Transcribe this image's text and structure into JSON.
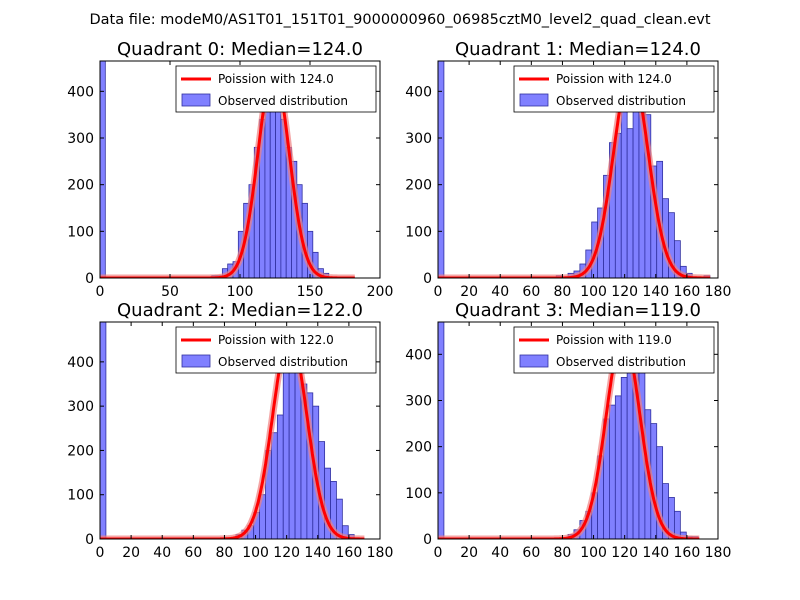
{
  "figure": {
    "suptitle": "Data file: modeM0/AS1T01_151T01_9000000960_06985cztM0_level2_quad_clean.evt",
    "colors": {
      "bar_fill": "#8080ff",
      "bar_edge": "#3030a0",
      "curve": "#ff0000",
      "curve_halo": "#f08080"
    }
  },
  "chart_data": [
    {
      "type": "bar",
      "title": "Quadrant 0: Median=124.0",
      "xlabel": "",
      "ylabel": "",
      "xlim": [
        0,
        200
      ],
      "ylim": [
        0,
        465
      ],
      "xticks": [
        0,
        50,
        100,
        150,
        200
      ],
      "yticks": [
        0,
        100,
        200,
        300,
        400
      ],
      "bin_width": 3.8,
      "legend": {
        "position": "top-right",
        "entries": [
          "Poission with 124.0",
          "Observed distribution"
        ]
      },
      "series": [
        {
          "name": "Observed distribution",
          "kind": "histogram",
          "bin_starts": [
            0,
            79.8,
            83.6,
            87.4,
            91.2,
            95.0,
            98.8,
            102.6,
            106.4,
            110.2,
            114.0,
            117.8,
            121.6,
            125.4,
            129.2,
            133.0,
            136.8,
            140.6,
            144.4,
            148.2,
            152.0,
            155.8,
            159.6
          ],
          "values": [
            470,
            5,
            5,
            20,
            30,
            35,
            100,
            160,
            200,
            280,
            340,
            390,
            420,
            400,
            340,
            280,
            250,
            200,
            160,
            100,
            55,
            20,
            10
          ]
        },
        {
          "name": "Poission with 124.0",
          "kind": "curve",
          "mean": 124.0,
          "peak": 445,
          "sigma": 11.1,
          "x_range": [
            0,
            182
          ]
        }
      ]
    },
    {
      "type": "bar",
      "title": "Quadrant 1: Median=124.0",
      "xlabel": "",
      "ylabel": "",
      "xlim": [
        0,
        180
      ],
      "ylim": [
        0,
        465
      ],
      "xticks": [
        0,
        20,
        40,
        60,
        80,
        100,
        120,
        140,
        160,
        180
      ],
      "yticks": [
        0,
        100,
        200,
        300,
        400
      ],
      "bin_width": 3.8,
      "legend": {
        "position": "top-right",
        "entries": [
          "Poission with 124.0",
          "Observed distribution"
        ]
      },
      "series": [
        {
          "name": "Observed distribution",
          "kind": "histogram",
          "bin_starts": [
            0,
            76.0,
            83.6,
            87.4,
            91.2,
            95.0,
            98.8,
            102.6,
            106.4,
            110.2,
            114.0,
            117.8,
            121.6,
            125.4,
            129.2,
            133.0,
            136.8,
            140.6,
            144.4,
            148.2,
            152.0,
            155.8,
            159.6,
            171.0
          ],
          "values": [
            470,
            5,
            10,
            15,
            30,
            60,
            120,
            150,
            220,
            290,
            310,
            370,
            320,
            440,
            390,
            350,
            240,
            250,
            170,
            140,
            80,
            25,
            10,
            5
          ]
        },
        {
          "name": "Poission with 124.0",
          "kind": "curve",
          "mean": 124.0,
          "peak": 445,
          "sigma": 11.1,
          "x_range": [
            0,
            175
          ]
        }
      ]
    },
    {
      "type": "bar",
      "title": "Quadrant 2: Median=122.0",
      "xlabel": "",
      "ylabel": "",
      "xlim": [
        0,
        180
      ],
      "ylim": [
        0,
        490
      ],
      "xticks": [
        0,
        20,
        40,
        60,
        80,
        100,
        120,
        140,
        160,
        180
      ],
      "yticks": [
        0,
        100,
        200,
        300,
        400
      ],
      "bin_width": 3.8,
      "legend": {
        "position": "top-right",
        "entries": [
          "Poission with 122.0",
          "Observed distribution"
        ]
      },
      "series": [
        {
          "name": "Observed distribution",
          "kind": "histogram",
          "bin_starts": [
            0,
            87.4,
            91.2,
            95.0,
            98.8,
            102.6,
            106.4,
            110.2,
            114.0,
            117.8,
            121.6,
            125.4,
            129.2,
            133.0,
            136.8,
            140.6,
            144.4,
            148.2,
            152.0,
            155.8,
            159.6
          ],
          "values": [
            490,
            10,
            20,
            30,
            60,
            100,
            200,
            240,
            280,
            380,
            460,
            420,
            350,
            330,
            300,
            220,
            160,
            130,
            90,
            30,
            10
          ]
        },
        {
          "name": "Poission with 122.0",
          "kind": "curve",
          "mean": 122.0,
          "peak": 460,
          "sigma": 11.0,
          "x_range": [
            0,
            170
          ]
        }
      ]
    },
    {
      "type": "bar",
      "title": "Quadrant 3: Median=119.0",
      "xlabel": "",
      "ylabel": "",
      "xlim": [
        0,
        180
      ],
      "ylim": [
        0,
        470
      ],
      "xticks": [
        0,
        20,
        40,
        60,
        80,
        100,
        120,
        140,
        160,
        180
      ],
      "yticks": [
        0,
        100,
        200,
        300,
        400
      ],
      "bin_width": 3.8,
      "legend": {
        "position": "top-right",
        "entries": [
          "Poission with 119.0",
          "Observed distribution"
        ]
      },
      "series": [
        {
          "name": "Observed distribution",
          "kind": "histogram",
          "bin_starts": [
            0,
            83.6,
            87.4,
            91.2,
            95.0,
            98.8,
            102.6,
            106.4,
            110.2,
            114.0,
            117.8,
            121.6,
            125.4,
            129.2,
            133.0,
            136.8,
            140.6,
            144.4,
            148.2,
            152.0,
            155.8,
            159.6,
            163.4
          ],
          "values": [
            470,
            10,
            20,
            40,
            60,
            100,
            180,
            260,
            290,
            310,
            350,
            420,
            380,
            360,
            280,
            250,
            200,
            120,
            90,
            60,
            15,
            5,
            5
          ]
        },
        {
          "name": "Poission with 119.0",
          "kind": "curve",
          "mean": 119.0,
          "peak": 440,
          "sigma": 10.9,
          "x_range": [
            0,
            168
          ]
        }
      ]
    }
  ]
}
